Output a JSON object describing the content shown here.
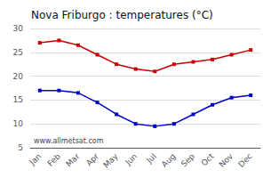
{
  "chart_data": {
    "type": "line",
    "title": "Nova Friburgo : temperatures (°C)",
    "categories": [
      "Jan",
      "Feb",
      "Mar",
      "Apr",
      "May",
      "Jun",
      "Jul",
      "Aug",
      "Sep",
      "Oct",
      "Nov",
      "Dec"
    ],
    "series": [
      {
        "color": "#cc0000",
        "marker": "square",
        "values": [
          27,
          27.5,
          26.5,
          24.5,
          22.5,
          21.5,
          21,
          22.5,
          23,
          23.5,
          24.5,
          25.5
        ]
      },
      {
        "color": "#0000cc",
        "marker": "square",
        "values": [
          17,
          17,
          16.5,
          14.5,
          12,
          10,
          9.5,
          10,
          12,
          14,
          15.5,
          16
        ]
      }
    ],
    "ylim": [
      5,
      30
    ],
    "yticks": [
      5,
      10,
      15,
      20,
      25,
      30
    ],
    "grid": true,
    "annotations": [
      "www.allmetsat.com"
    ]
  }
}
